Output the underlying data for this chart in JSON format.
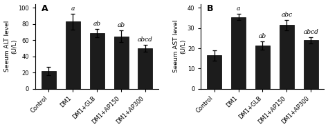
{
  "panel_A": {
    "title": "A",
    "ylabel": "Seeum ALT level\n(U/L)",
    "categories": [
      "Control",
      "DM1",
      "DM1+GLB",
      "DM1+AP150",
      "DM1+AP300"
    ],
    "values": [
      22,
      83,
      69,
      65,
      50
    ],
    "errors": [
      5,
      10,
      5,
      7,
      4
    ],
    "ylim": [
      0,
      105
    ],
    "yticks": [
      0,
      20,
      40,
      60,
      80,
      100
    ],
    "sig_labels": [
      "",
      "a",
      "ab",
      "ab",
      "abcd"
    ],
    "bar_color": "#1c1c1c"
  },
  "panel_B": {
    "title": "B",
    "ylabel": "Seeum AST level\n(U/L)",
    "categories": [
      "Control",
      "DM1",
      "DM1+GLB",
      "DM1+AP150",
      "DM1+AP300"
    ],
    "values": [
      16.5,
      35.5,
      21.5,
      31.5,
      24
    ],
    "errors": [
      2.5,
      1.5,
      2.0,
      2.5,
      1.5
    ],
    "ylim": [
      0,
      42
    ],
    "yticks": [
      0,
      10,
      20,
      30,
      40
    ],
    "sig_labels": [
      "",
      "a",
      "ab",
      "abc",
      "abcd"
    ],
    "bar_color": "#1c1c1c"
  },
  "background_color": "#ffffff",
  "tick_labelsize": 6.0,
  "ylabel_fontsize": 6.5,
  "sig_fontsize": 6.5,
  "title_fontsize": 9
}
